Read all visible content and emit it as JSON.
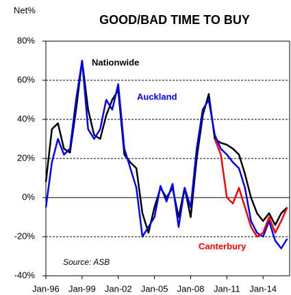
{
  "chart_data": {
    "type": "line",
    "title": "GOOD/BAD  TIME TO BUY",
    "y_label": "Net%",
    "source": "Source:  ASB",
    "x": [
      1996.0,
      1996.5,
      1997.0,
      1997.5,
      1998.0,
      1998.5,
      1999.0,
      1999.5,
      2000.0,
      2000.5,
      2001.0,
      2001.5,
      2002.0,
      2002.5,
      2003.0,
      2003.5,
      2004.0,
      2004.5,
      2005.0,
      2005.5,
      2006.0,
      2006.5,
      2007.0,
      2007.5,
      2008.0,
      2008.5,
      2009.0,
      2009.5,
      2010.0,
      2010.5,
      2011.0,
      2011.5,
      2012.0,
      2012.5,
      2013.0,
      2013.5,
      2014.0,
      2014.5,
      2015.0,
      2015.5,
      2016.0
    ],
    "series": [
      {
        "name": "Nationwide",
        "color": "#000000",
        "values": [
          8,
          35,
          38,
          25,
          23,
          45,
          70,
          45,
          32,
          30,
          42,
          50,
          55,
          22,
          18,
          15,
          -8,
          -18,
          -5,
          5,
          0,
          5,
          -10,
          5,
          -10,
          20,
          42,
          53,
          30,
          28,
          27,
          25,
          22,
          12,
          0,
          -8,
          -12,
          -8,
          -14,
          -8,
          -5
        ]
      },
      {
        "name": "Auckland",
        "color": "#0000ff",
        "values": [
          -5,
          18,
          30,
          22,
          25,
          50,
          70,
          35,
          30,
          35,
          50,
          45,
          58,
          25,
          15,
          5,
          -20,
          -15,
          -10,
          6,
          -2,
          7,
          -15,
          5,
          -5,
          25,
          45,
          50,
          32,
          25,
          22,
          18,
          15,
          5,
          -12,
          -18,
          -20,
          -12,
          -22,
          -26,
          -21
        ]
      },
      {
        "name": "Canterbury",
        "color": "#ff0000",
        "values": [
          null,
          null,
          null,
          null,
          null,
          null,
          null,
          null,
          null,
          null,
          null,
          null,
          null,
          null,
          null,
          null,
          null,
          null,
          null,
          null,
          null,
          null,
          null,
          null,
          null,
          null,
          null,
          null,
          30,
          22,
          0,
          -3,
          5,
          -5,
          -15,
          -20,
          -18,
          -10,
          -18,
          -12,
          -5
        ]
      }
    ],
    "xlim": [
      1996,
      2016.2
    ],
    "xticks": [
      {
        "value": 1996,
        "label": "Jan-96"
      },
      {
        "value": 1999,
        "label": "Jan-99"
      },
      {
        "value": 2002,
        "label": "Jan-02"
      },
      {
        "value": 2005,
        "label": "Jan-05"
      },
      {
        "value": 2008,
        "label": "Jan-08"
      },
      {
        "value": 2011,
        "label": "Jan-11"
      },
      {
        "value": 2014,
        "label": "Jan-14"
      }
    ],
    "ylim": [
      -40,
      80
    ],
    "yticks": [
      {
        "value": -40,
        "label": "-40%"
      },
      {
        "value": -20,
        "label": "-20%"
      },
      {
        "value": 0,
        "label": "0%"
      },
      {
        "value": 20,
        "label": "20%"
      },
      {
        "value": 40,
        "label": "40%"
      },
      {
        "value": 60,
        "label": "60%"
      },
      {
        "value": 80,
        "label": "80%"
      }
    ],
    "grid": true
  }
}
